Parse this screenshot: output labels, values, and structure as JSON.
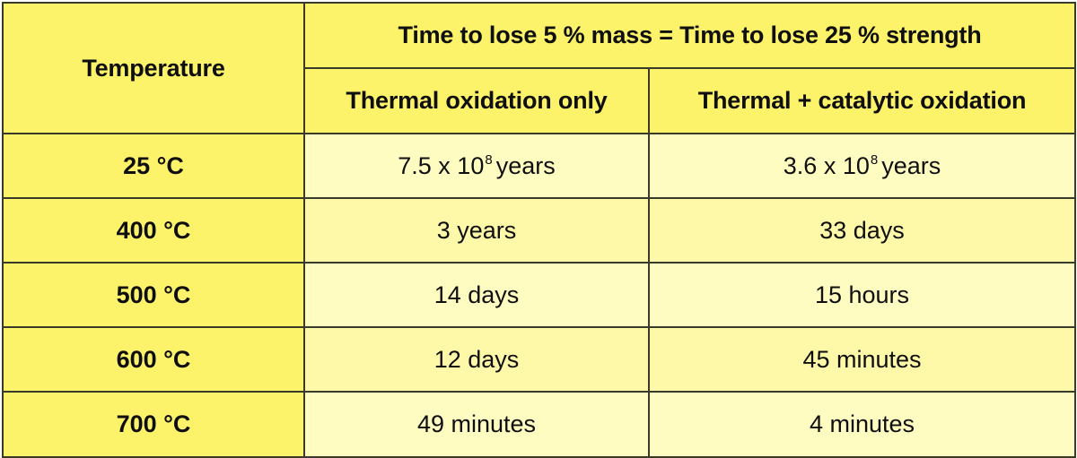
{
  "table": {
    "corner_header": "Temperature",
    "group_header": "Time to lose 5 % mass = Time to lose 25 % strength",
    "sub_headers": [
      "Thermal oxidation only",
      "Thermal + catalytic oxidation"
    ],
    "rows": [
      {
        "temperature": "25 °C",
        "thermal": {
          "base": "7.5 x 10",
          "exp": "8",
          "unit": "years"
        },
        "catalytic": {
          "base": "3.6 x 10",
          "exp": "8",
          "unit": "years"
        }
      },
      {
        "temperature": "400 °C",
        "thermal": "3 years",
        "catalytic": "33 days"
      },
      {
        "temperature": "500 °C",
        "thermal": "14 days",
        "catalytic": "15 hours"
      },
      {
        "temperature": "600 °C",
        "thermal": "12 days",
        "catalytic": "45 minutes"
      },
      {
        "temperature": "700 °C",
        "thermal": "49 minutes",
        "catalytic": "4 minutes"
      }
    ]
  },
  "colors": {
    "header_bg": "#fcf36a",
    "cell_bg": "#fefcc0",
    "cell_alt_bg": "#fdf9a8",
    "border": "#3a3a2a"
  }
}
